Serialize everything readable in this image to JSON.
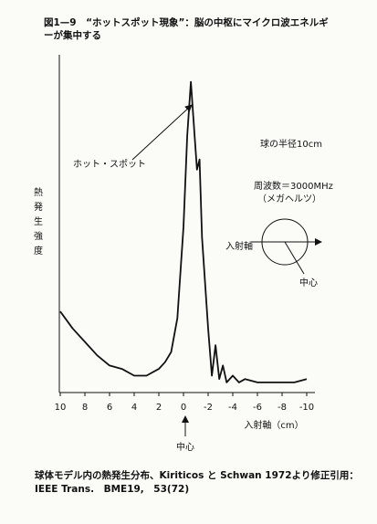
{
  "chart_data": {
    "type": "line",
    "title": "図1—9　“ホットスポット現象”：脳の中枢にマイクロ波エネルギーが集中する",
    "y_label": "熱発生強度",
    "x_label": "入射軸（cm）",
    "annotations": [
      "ホット・スポット",
      "球の半径10cm",
      "周波数＝3000MHz",
      "（メガヘルツ）",
      "入射軸",
      "中心",
      "中心"
    ],
    "caption": [
      "球体モデル内の熱発生分布、Kiriticos と Schwan 1972より修正引用：",
      "IEEE Trans.　BME19,　53(72)"
    ],
    "color": "#111111",
    "x": [
      10,
      9,
      8,
      7,
      6,
      5,
      4,
      3,
      2,
      1.5,
      1,
      0.5,
      0,
      -0.3,
      -0.6,
      -0.9,
      -1.1,
      -1.3,
      -1.5,
      -2,
      -2.3,
      -2.6,
      -2.9,
      -3.2,
      -3.5,
      -4,
      -4.5,
      -5,
      -6,
      -7,
      -8,
      -9,
      -10
    ],
    "values": [
      2.4,
      1.9,
      1.5,
      1.1,
      0.8,
      0.7,
      0.5,
      0.5,
      0.7,
      0.9,
      1.2,
      2.2,
      4.9,
      7.6,
      9.2,
      7.6,
      6.6,
      6.9,
      4.6,
      1.9,
      0.5,
      1.4,
      0.4,
      0.8,
      0.3,
      0.5,
      0.3,
      0.4,
      0.3,
      0.3,
      0.3,
      0.3,
      0.4
    ],
    "xlim": [
      10,
      -10
    ],
    "xticks": [
      10,
      8,
      6,
      4,
      2,
      0,
      -2,
      -4,
      -6,
      -8,
      -10
    ],
    "ylim": [
      0,
      10
    ]
  }
}
